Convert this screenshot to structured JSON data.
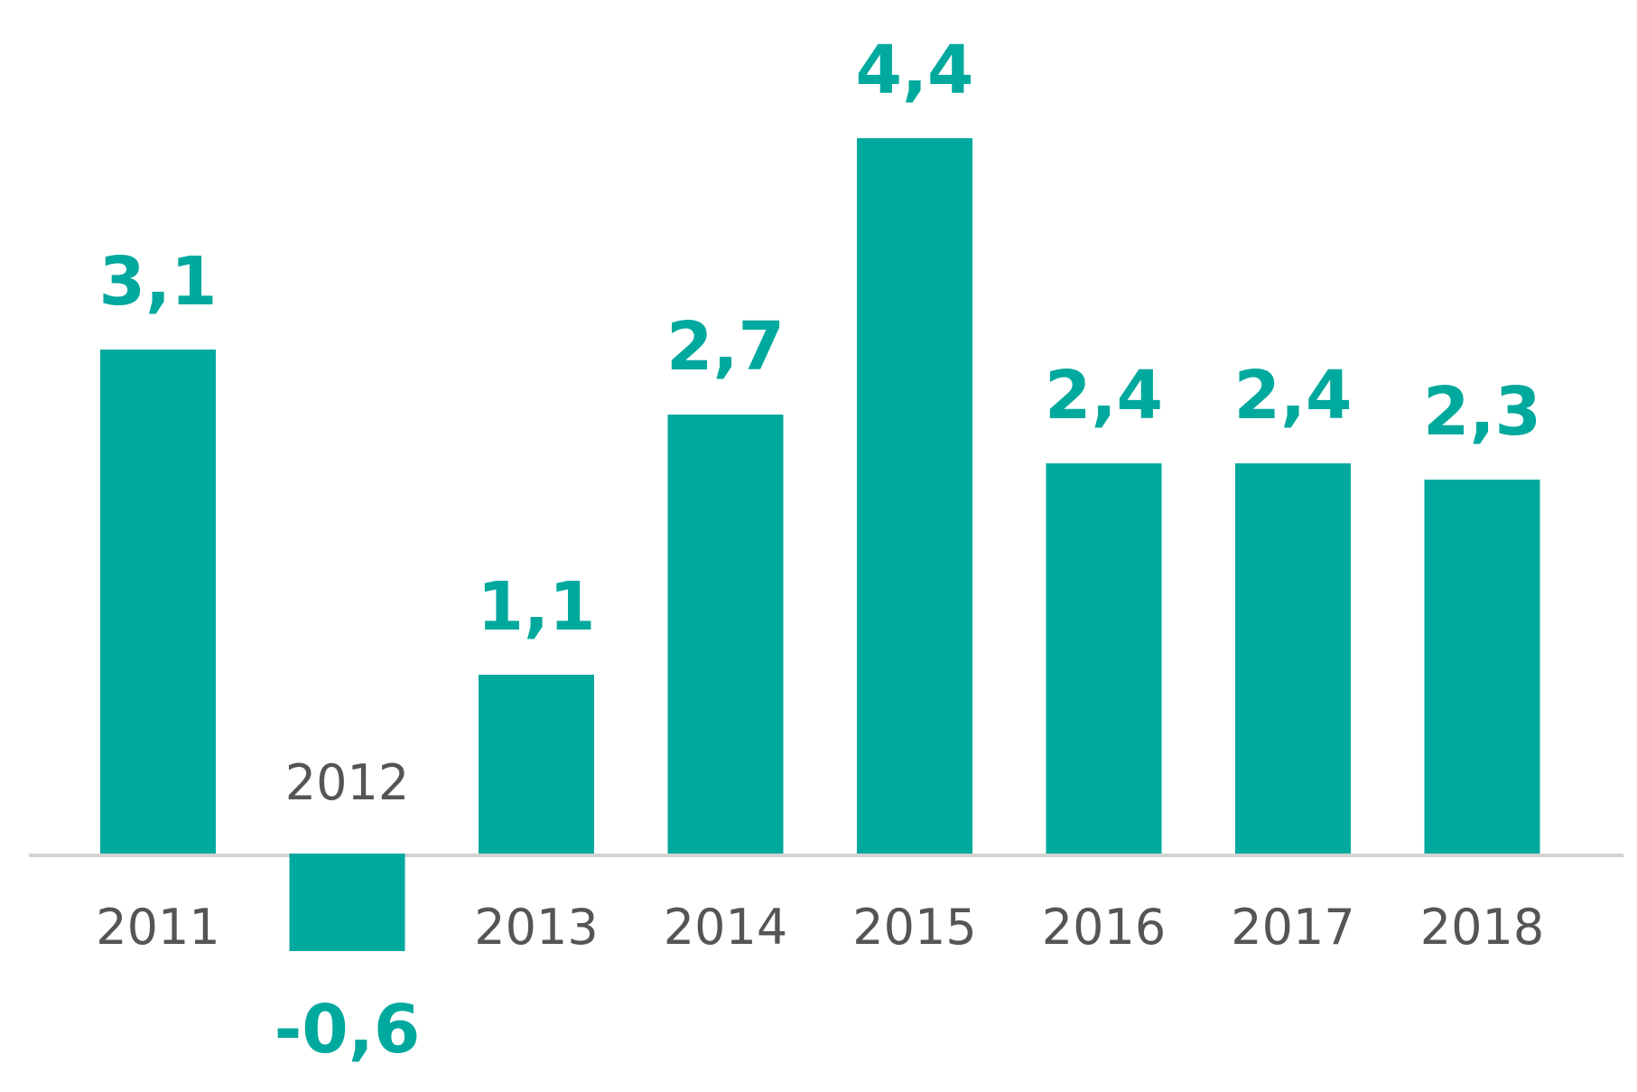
{
  "colors": {
    "bar": "#00A99D",
    "value_text": "#00A99D",
    "year_text": "#555555",
    "baseline": "#d3d3d3"
  },
  "chart_data": {
    "type": "bar",
    "categories": [
      "2011",
      "2012",
      "2013",
      "2014",
      "2015",
      "2016",
      "2017",
      "2018"
    ],
    "values": [
      3.1,
      -0.6,
      1.1,
      2.7,
      4.4,
      2.4,
      2.4,
      2.3
    ],
    "value_labels": [
      "3,1",
      "-0,6",
      "1,1",
      "2,7",
      "4,4",
      "2,4",
      "2,4",
      "2,3"
    ],
    "title": "",
    "xlabel": "",
    "ylabel": "",
    "ylim": [
      -0.6,
      4.4
    ],
    "grid": false,
    "legend": "none"
  }
}
